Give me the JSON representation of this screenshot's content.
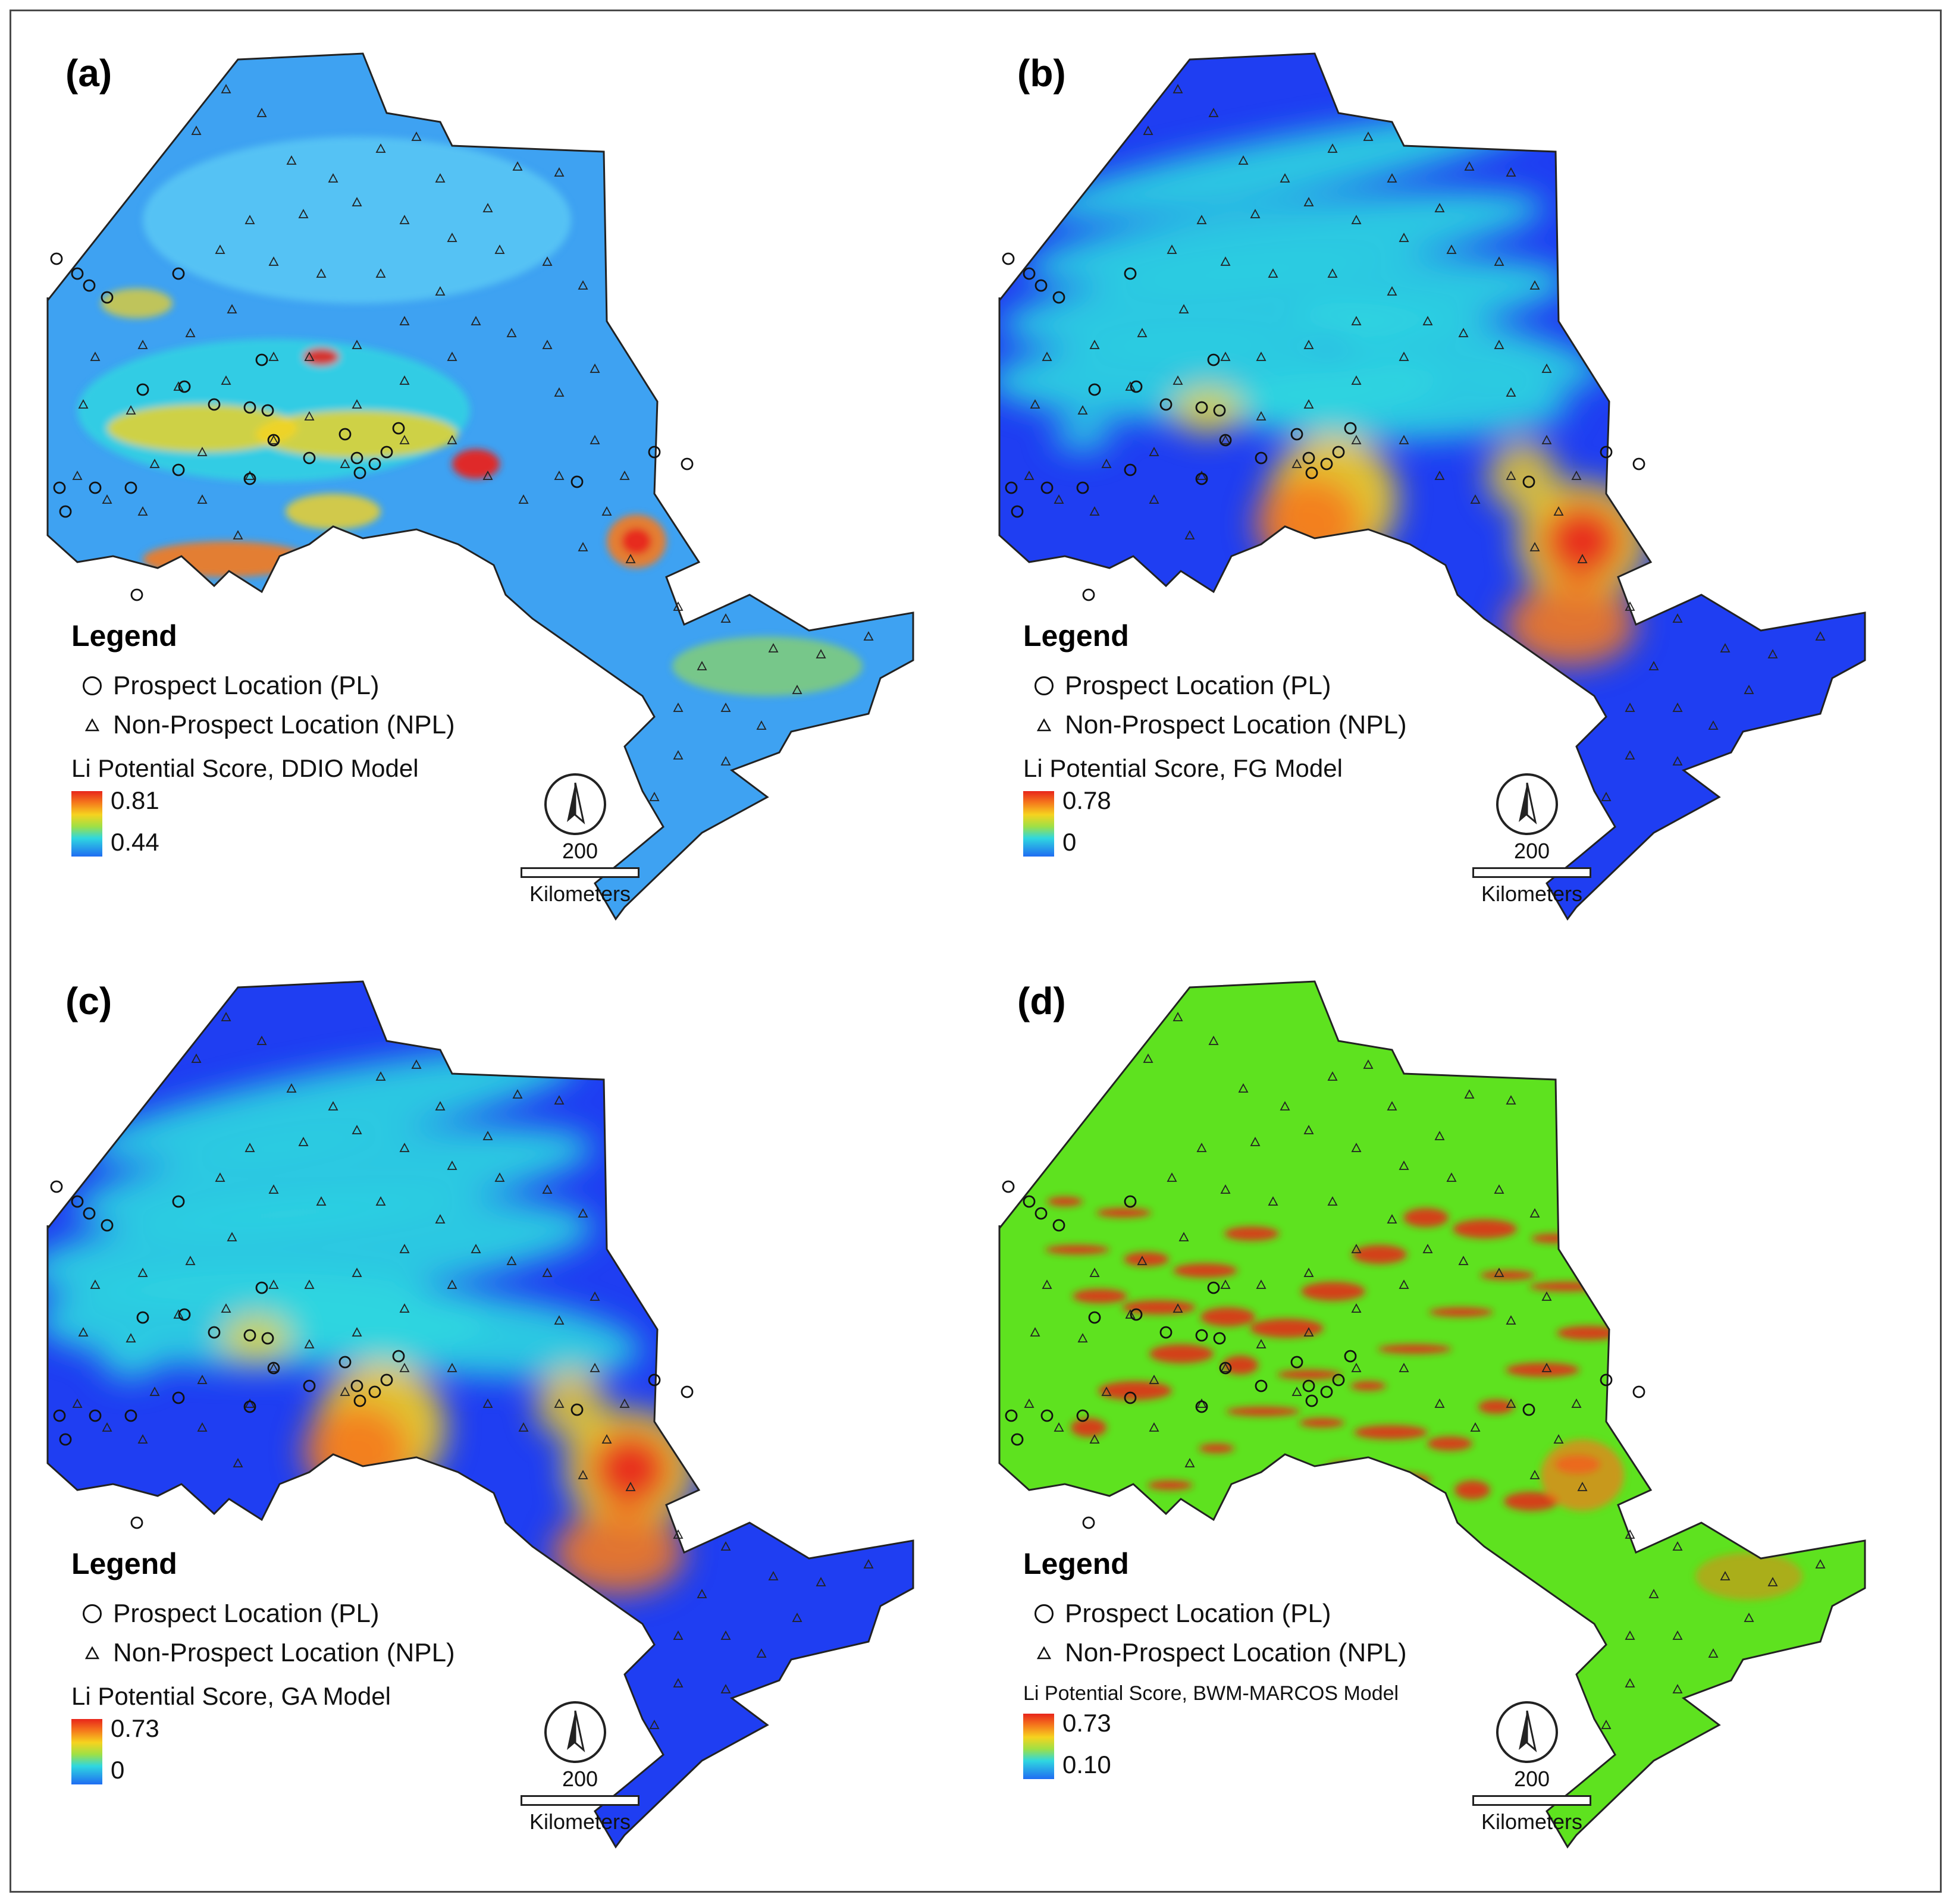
{
  "panels": [
    {
      "label": "(a)",
      "legend_title": "Legend",
      "pl_label": "Prospect Location (PL)",
      "npl_label": "Non-Prospect Location (NPL)",
      "score_title": "Li Potential Score, DDIO Model",
      "max": "0.81",
      "min": "0.44",
      "scale_value": "200",
      "scale_unit": "Kilometers"
    },
    {
      "label": "(b)",
      "legend_title": "Legend",
      "pl_label": "Prospect Location (PL)",
      "npl_label": "Non-Prospect Location (NPL)",
      "score_title": "Li Potential Score, FG Model",
      "max": "0.78",
      "min": "0",
      "scale_value": "200",
      "scale_unit": "Kilometers"
    },
    {
      "label": "(c)",
      "legend_title": "Legend",
      "pl_label": "Prospect Location (PL)",
      "npl_label": "Non-Prospect Location (NPL)",
      "score_title": "Li Potential Score, GA Model",
      "max": "0.73",
      "min": "0",
      "scale_value": "200",
      "scale_unit": "Kilometers"
    },
    {
      "label": "(d)",
      "legend_title": "Legend",
      "pl_label": "Prospect Location (PL)",
      "npl_label": "Non-Prospect Location (NPL)",
      "score_title": "Li Potential Score, BWM-MARCOS Model",
      "max": "0.73",
      "min": "0.10",
      "scale_value": "200",
      "scale_unit": "Kilometers"
    }
  ],
  "colors": {
    "blue": "#1f3ef2",
    "cyan": "#2fd7e0",
    "green": "#5ee21f",
    "yellow": "#f6d31f",
    "orange": "#f57a1c",
    "red": "#e8251b"
  }
}
